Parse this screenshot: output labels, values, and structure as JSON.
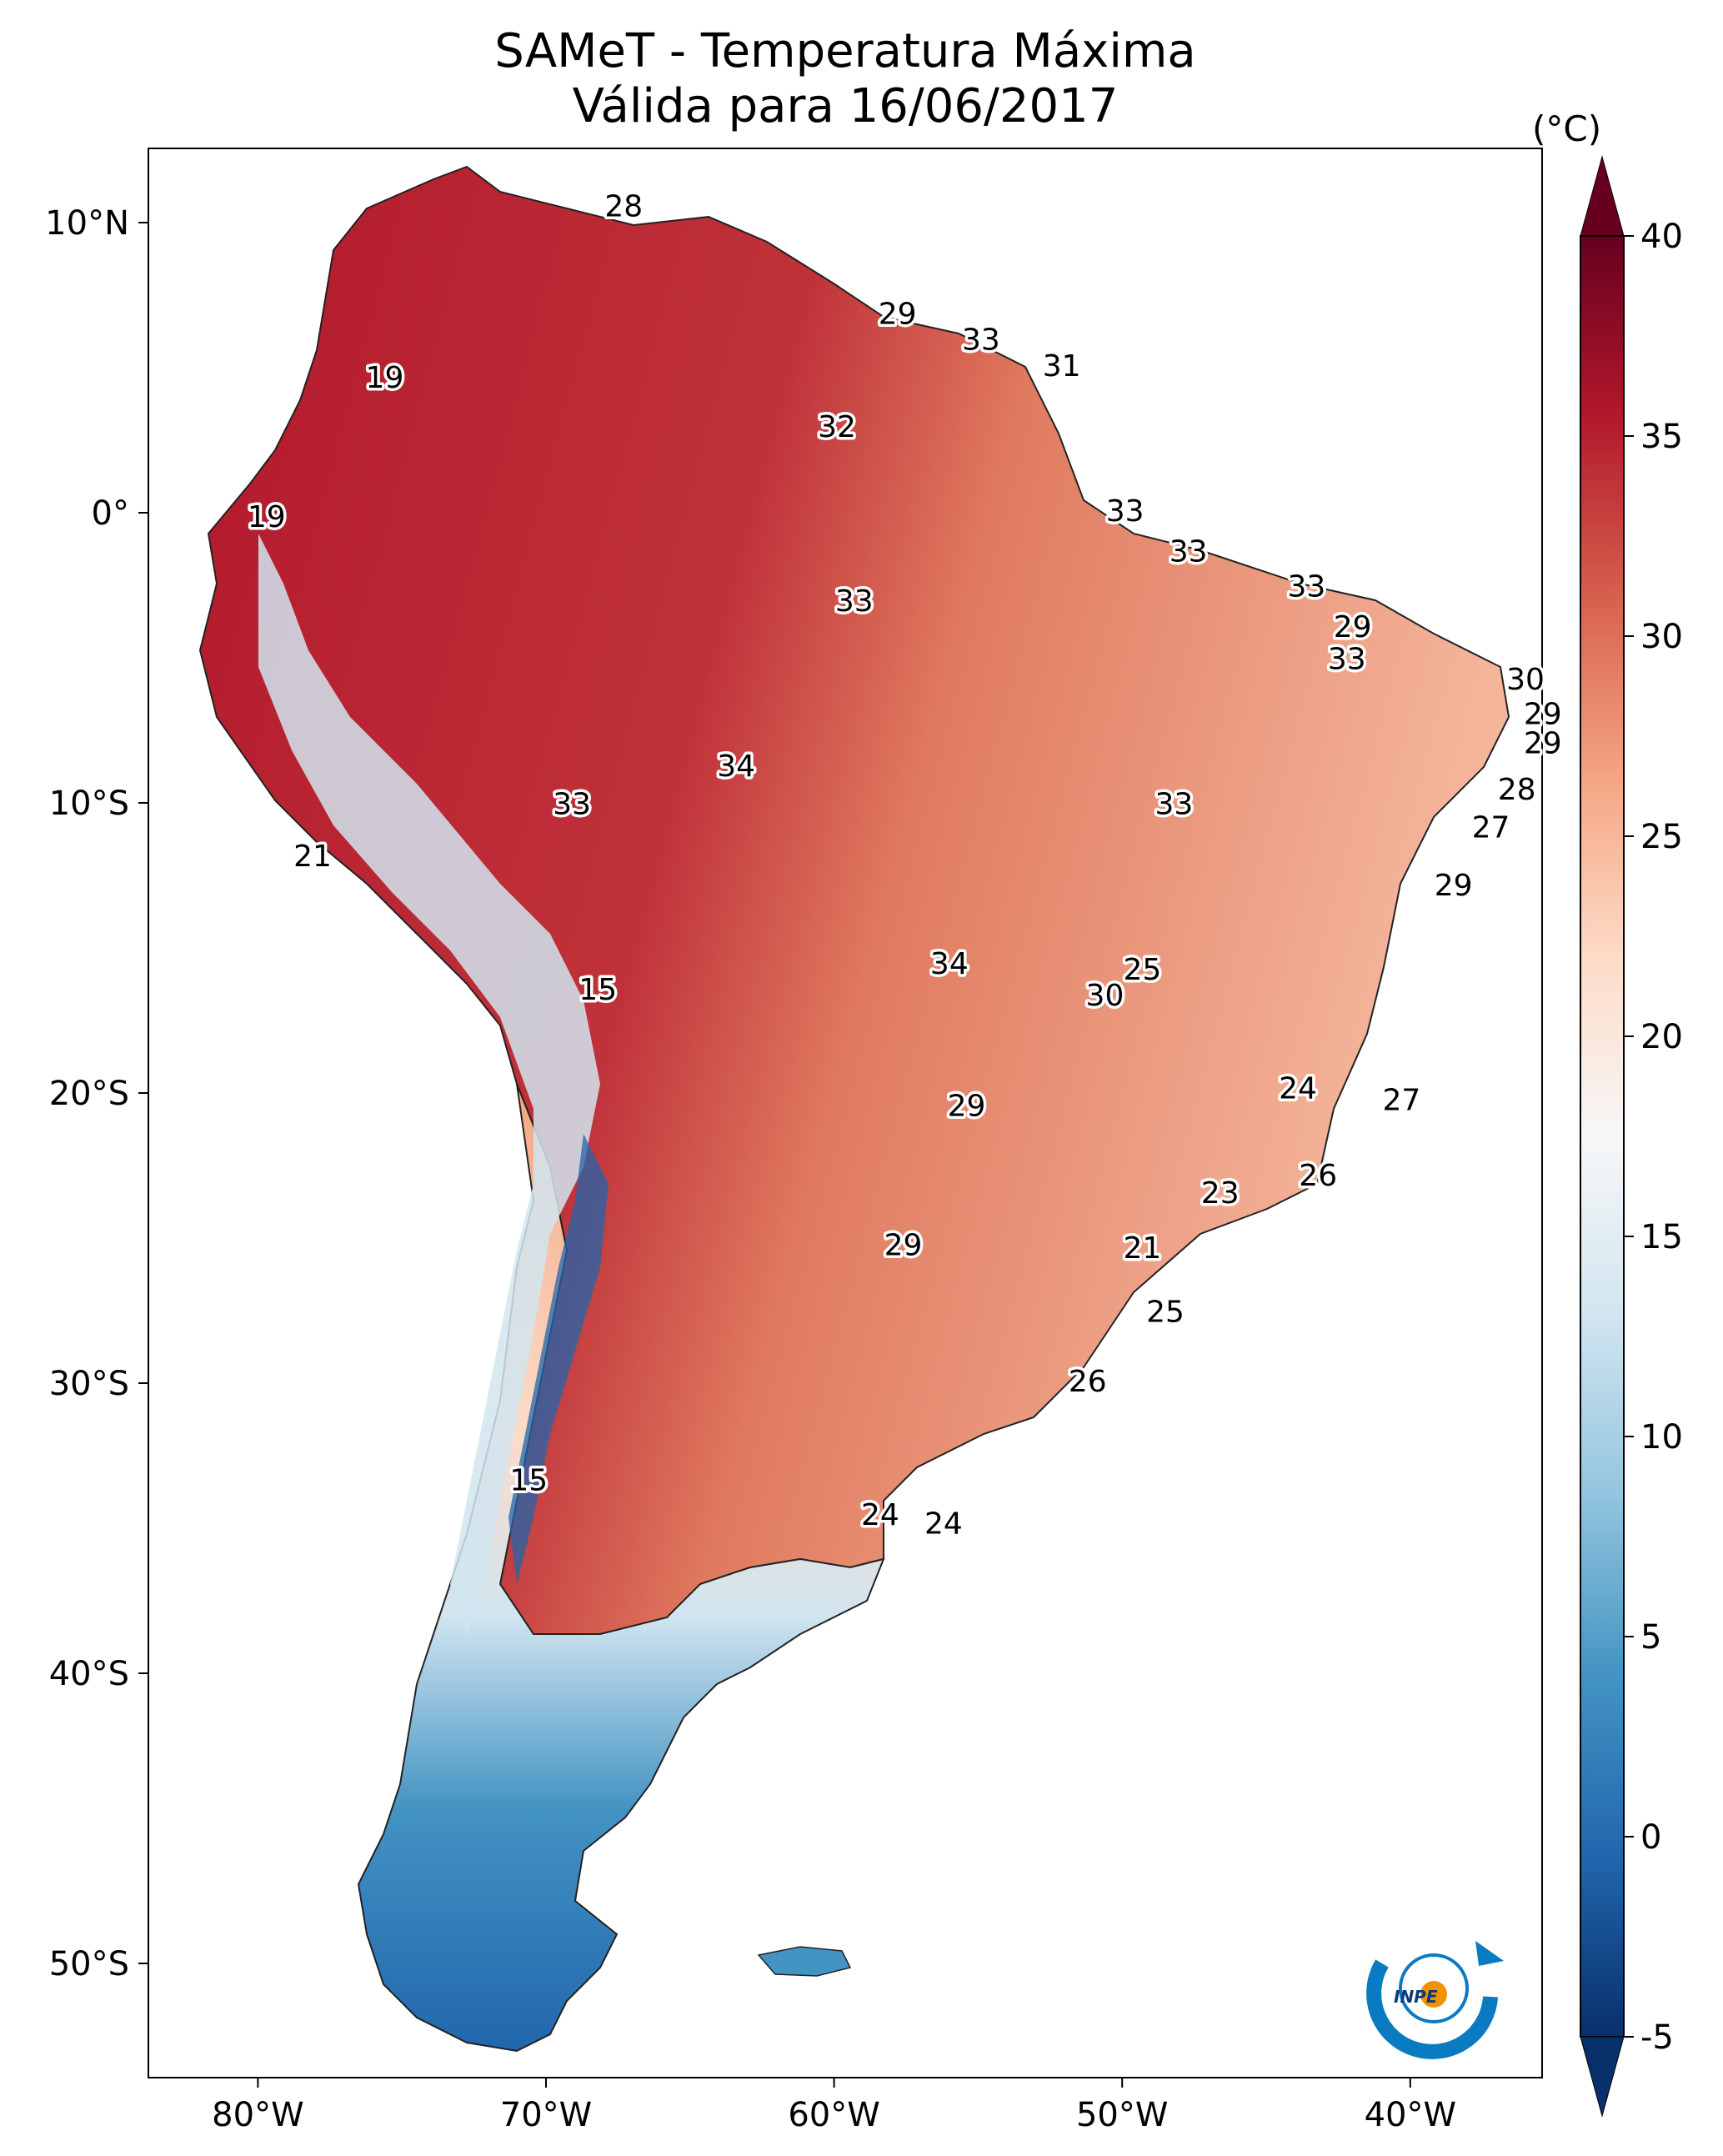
{
  "title": "SAMeT - Temperatura Máxima",
  "subtitle": "Válida para 16/06/2017",
  "colorbar": {
    "unit": "(°C)",
    "ticks": [
      "40",
      "35",
      "30",
      "25",
      "20",
      "15",
      "10",
      "5",
      "0",
      "-5"
    ],
    "range": [
      -5,
      40
    ],
    "colors": [
      "#08306b",
      "#2166ac",
      "#4393c3",
      "#92c5de",
      "#d1e5f0",
      "#f7f7f7",
      "#fddbc7",
      "#f4a582",
      "#d6604d",
      "#b2182b",
      "#67001f"
    ]
  },
  "axes": {
    "lon_labels": [
      "80°W",
      "70°W",
      "60°W",
      "50°W",
      "40°W"
    ],
    "lat_labels": [
      "10°N",
      "0°",
      "10°S",
      "20°S",
      "30°S",
      "40°S",
      "50°S"
    ]
  },
  "temperature_labels": [
    {
      "lon": -67.3,
      "lat": 10.5,
      "value": "28"
    },
    {
      "lon": -75.6,
      "lat": 4.6,
      "value": "19"
    },
    {
      "lon": -57.8,
      "lat": 6.8,
      "value": "29"
    },
    {
      "lon": -54.9,
      "lat": 5.9,
      "value": "33"
    },
    {
      "lon": -52.1,
      "lat": 5.0,
      "value": "31"
    },
    {
      "lon": -59.9,
      "lat": 2.9,
      "value": "32"
    },
    {
      "lon": -79.7,
      "lat": -0.2,
      "value": "19"
    },
    {
      "lon": -49.9,
      "lat": 0.0,
      "value": "33"
    },
    {
      "lon": -47.7,
      "lat": -1.4,
      "value": "33"
    },
    {
      "lon": -59.3,
      "lat": -3.1,
      "value": "33"
    },
    {
      "lon": -43.6,
      "lat": -2.6,
      "value": "33"
    },
    {
      "lon": -42.0,
      "lat": -4.0,
      "value": "29"
    },
    {
      "lon": -42.2,
      "lat": -5.1,
      "value": "33"
    },
    {
      "lon": -36.0,
      "lat": -5.8,
      "value": "30"
    },
    {
      "lon": -35.4,
      "lat": -7.0,
      "value": "29"
    },
    {
      "lon": -35.4,
      "lat": -8.0,
      "value": "29"
    },
    {
      "lon": -63.4,
      "lat": -8.8,
      "value": "34"
    },
    {
      "lon": -36.3,
      "lat": -9.6,
      "value": "28"
    },
    {
      "lon": -69.1,
      "lat": -10.1,
      "value": "33"
    },
    {
      "lon": -48.2,
      "lat": -10.1,
      "value": "33"
    },
    {
      "lon": -37.2,
      "lat": -10.9,
      "value": "27"
    },
    {
      "lon": -78.1,
      "lat": -11.9,
      "value": "21"
    },
    {
      "lon": -38.5,
      "lat": -12.9,
      "value": "29"
    },
    {
      "lon": -56.0,
      "lat": -15.6,
      "value": "34"
    },
    {
      "lon": -49.3,
      "lat": -15.8,
      "value": "25"
    },
    {
      "lon": -50.6,
      "lat": -16.7,
      "value": "30"
    },
    {
      "lon": -68.2,
      "lat": -16.5,
      "value": "15"
    },
    {
      "lon": -43.9,
      "lat": -19.9,
      "value": "24"
    },
    {
      "lon": -40.3,
      "lat": -20.3,
      "value": "27"
    },
    {
      "lon": -55.4,
      "lat": -20.5,
      "value": "29"
    },
    {
      "lon": -43.2,
      "lat": -22.9,
      "value": "26"
    },
    {
      "lon": -46.6,
      "lat": -23.5,
      "value": "23"
    },
    {
      "lon": -57.6,
      "lat": -25.3,
      "value": "29"
    },
    {
      "lon": -49.3,
      "lat": -25.4,
      "value": "21"
    },
    {
      "lon": -48.5,
      "lat": -27.6,
      "value": "25"
    },
    {
      "lon": -51.2,
      "lat": -30.0,
      "value": "26"
    },
    {
      "lon": -70.6,
      "lat": -33.4,
      "value": "15"
    },
    {
      "lon": -58.4,
      "lat": -34.6,
      "value": "24"
    },
    {
      "lon": -56.2,
      "lat": -34.9,
      "value": "24"
    }
  ]
}
